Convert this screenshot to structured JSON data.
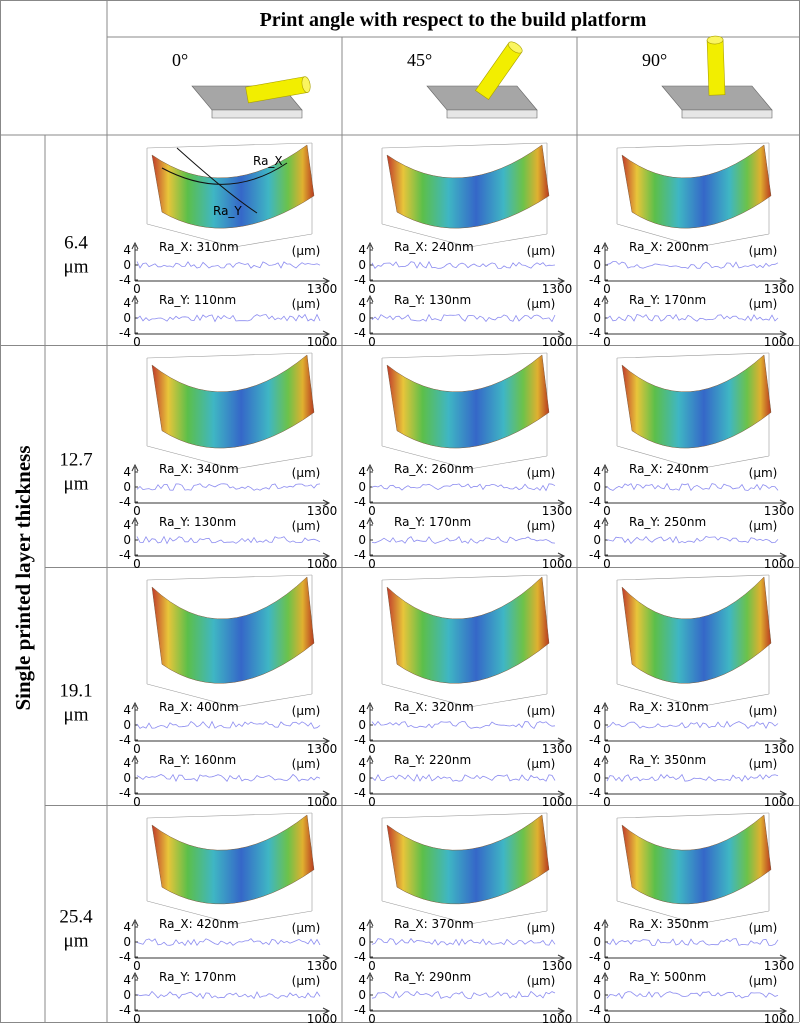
{
  "header": {
    "title": "Print angle with respect to the build platform",
    "angles": [
      "0°",
      "45°",
      "90°"
    ]
  },
  "row_header": "Single printed layer thickness",
  "profile_axis": {
    "yticks": [
      "4",
      "0",
      "-4"
    ],
    "x_start": "0",
    "x_end_ra_x": "1300",
    "x_end_ra_y": "1000",
    "unit": "(μm)"
  },
  "surface_annotations": [
    "Ra_X",
    "Ra_Y"
  ],
  "rows": [
    {
      "thickness": "6.4",
      "unit": "μm",
      "cells": [
        {
          "ra_x": "Ra_X: 310nm",
          "ra_y": "Ra_Y: 110nm"
        },
        {
          "ra_x": "Ra_X: 240nm",
          "ra_y": "Ra_Y: 130nm"
        },
        {
          "ra_x": "Ra_X: 200nm",
          "ra_y": "Ra_Y: 170nm"
        }
      ]
    },
    {
      "thickness": "12.7",
      "unit": "μm",
      "cells": [
        {
          "ra_x": "Ra_X: 340nm",
          "ra_y": "Ra_Y: 130nm"
        },
        {
          "ra_x": "Ra_X: 260nm",
          "ra_y": "Ra_Y: 170nm"
        },
        {
          "ra_x": "Ra_X: 240nm",
          "ra_y": "Ra_Y: 250nm"
        }
      ]
    },
    {
      "thickness": "19.1",
      "unit": "μm",
      "cells": [
        {
          "ra_x": "Ra_X: 400nm",
          "ra_y": "Ra_Y: 160nm"
        },
        {
          "ra_x": "Ra_X: 320nm",
          "ra_y": "Ra_Y: 220nm"
        },
        {
          "ra_x": "Ra_X: 310nm",
          "ra_y": "Ra_Y: 350nm"
        }
      ]
    },
    {
      "thickness": "25.4",
      "unit": "μm",
      "cells": [
        {
          "ra_x": "Ra_X: 420nm",
          "ra_y": "Ra_Y: 170nm"
        },
        {
          "ra_x": "Ra_X: 370nm",
          "ra_y": "Ra_Y: 290nm"
        },
        {
          "ra_x": "Ra_X: 350nm",
          "ra_y": "Ra_Y: 500nm"
        }
      ]
    }
  ]
}
